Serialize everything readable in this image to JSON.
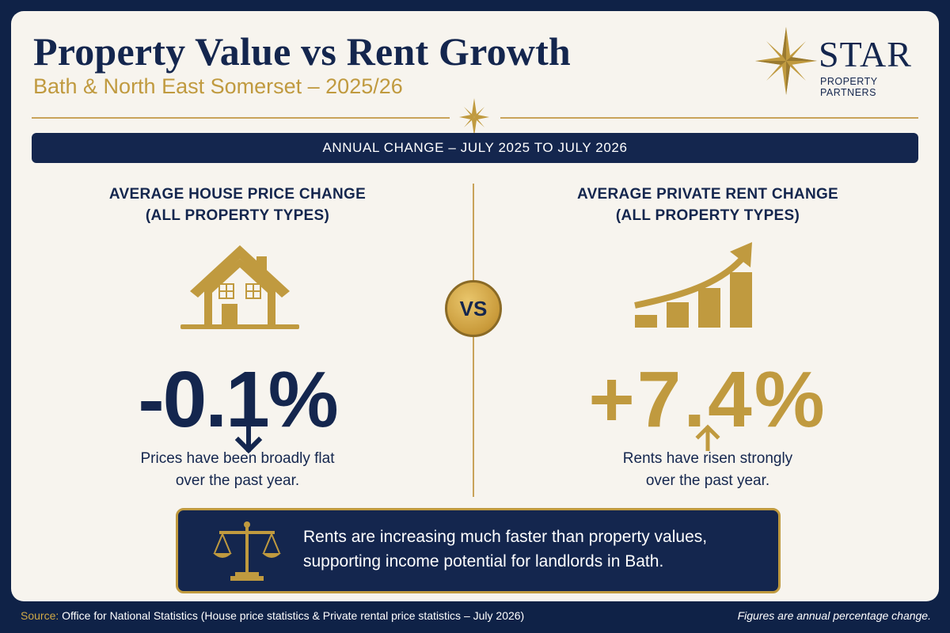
{
  "header": {
    "title": "Property Value vs Rent Growth",
    "subtitle": "Bath & North East Somerset – 2025/26"
  },
  "logo": {
    "wordmark": "STAR",
    "tagline": "PROPERTY PARTNERS",
    "icon": "compass-star-icon"
  },
  "banner": {
    "text": "ANNUAL CHANGE – JULY 2025 TO JULY 2026"
  },
  "left": {
    "heading_line1": "AVERAGE HOUSE PRICE CHANGE",
    "heading_line2": "(ALL PROPERTY TYPES)",
    "icon": "house-icon",
    "value": "-0.1%",
    "direction_icon": "arrow-down-icon",
    "note_line1": "Prices have been broadly flat",
    "note_line2": "over the past year."
  },
  "vs": {
    "label": "VS"
  },
  "right": {
    "heading_line1": "AVERAGE PRIVATE RENT CHANGE",
    "heading_line2": "(ALL PROPERTY TYPES)",
    "icon": "rising-bar-chart-icon",
    "value": "+7.4%",
    "direction_icon": "arrow-up-icon",
    "note_line1": "Rents have risen strongly",
    "note_line2": "over the past year."
  },
  "summary": {
    "icon": "balance-scale-icon",
    "line1": "Rents are increasing much faster than property values,",
    "line2": "supporting income potential for landlords in Bath."
  },
  "footer": {
    "source_label": "Source:",
    "source_text": " Office for National Statistics (House price statistics & Private rental price statistics – July 2026)",
    "note": "Figures are annual percentage change."
  },
  "colors": {
    "navy": "#14264e",
    "gold": "#c09a3f",
    "background": "#f7f4ee"
  }
}
